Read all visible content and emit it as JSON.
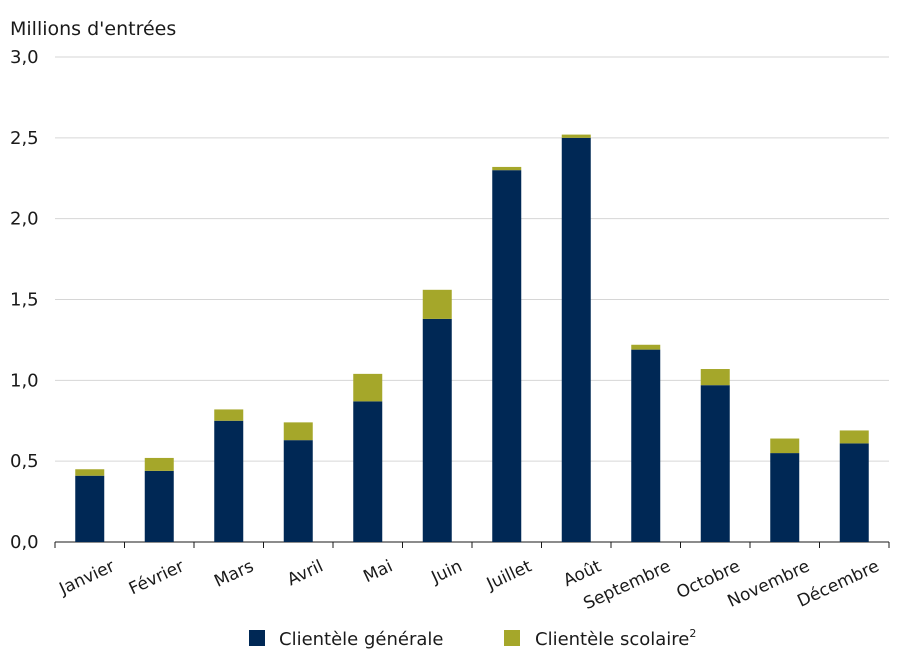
{
  "chart_data": {
    "type": "bar",
    "stacked": true,
    "ylabel": "Millions d'entrées",
    "xlabel": "",
    "ylim": [
      0,
      3.0
    ],
    "yticks": [
      "0,0",
      "0,5",
      "1,0",
      "1,5",
      "2,0",
      "2,5",
      "3,0"
    ],
    "grid": true,
    "legend_position": "bottom",
    "categories": [
      "Janvier",
      "Février",
      "Mars",
      "Avril",
      "Mai",
      "Juin",
      "Juillet",
      "Août",
      "Septembre",
      "Octobre",
      "Novembre",
      "Décembre"
    ],
    "series": [
      {
        "name": "Clientèle générale",
        "color": "#002855",
        "values": [
          0.41,
          0.44,
          0.75,
          0.63,
          0.87,
          1.38,
          2.3,
          2.5,
          1.19,
          0.97,
          0.55,
          0.61
        ]
      },
      {
        "name": "Clientèle scolaire",
        "superscript": "2",
        "color": "#a5a72a",
        "values": [
          0.04,
          0.08,
          0.07,
          0.11,
          0.17,
          0.18,
          0.02,
          0.02,
          0.03,
          0.1,
          0.09,
          0.08
        ]
      }
    ]
  }
}
